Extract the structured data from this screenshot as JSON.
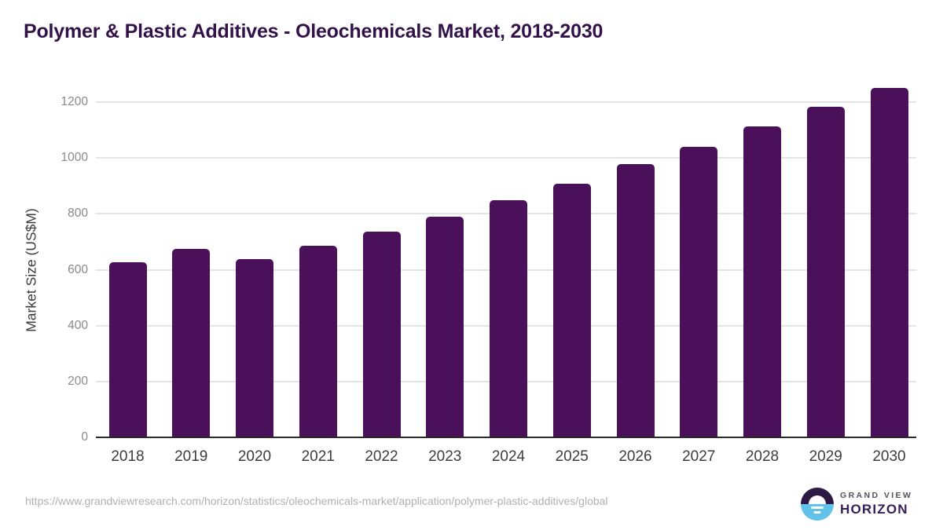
{
  "title": "Polymer & Plastic Additives - Oleochemicals Market, 2018-2030",
  "chart_data": {
    "type": "bar",
    "categories": [
      "2018",
      "2019",
      "2020",
      "2021",
      "2022",
      "2023",
      "2024",
      "2025",
      "2026",
      "2027",
      "2028",
      "2029",
      "2030"
    ],
    "values": [
      627,
      674,
      638,
      686,
      736,
      791,
      849,
      909,
      977,
      1041,
      1114,
      1182,
      1251
    ],
    "title": "Polymer & Plastic Additives - Oleochemicals Market, 2018-2030",
    "xlabel": "",
    "ylabel": "Market Size (US$M)",
    "ylim": [
      0,
      1260
    ],
    "yticks": [
      0,
      200,
      400,
      600,
      800,
      1000,
      1200
    ],
    "grid": true,
    "legend": false,
    "bar_color": "#4a115a"
  },
  "footer": {
    "source_url": "https://www.grandviewresearch.com/horizon/statistics/oleochemicals-market/application/polymer-plastic-additives/global",
    "brand_line1": "GRAND VIEW",
    "brand_line2": "HORIZON"
  },
  "colors": {
    "bar": "#4a115a",
    "title": "#33124a",
    "gridline": "#e4e4e4",
    "axis_line": "#2a2a2a",
    "logo_top": "#2d1a44",
    "logo_bottom": "#62c3ea"
  }
}
